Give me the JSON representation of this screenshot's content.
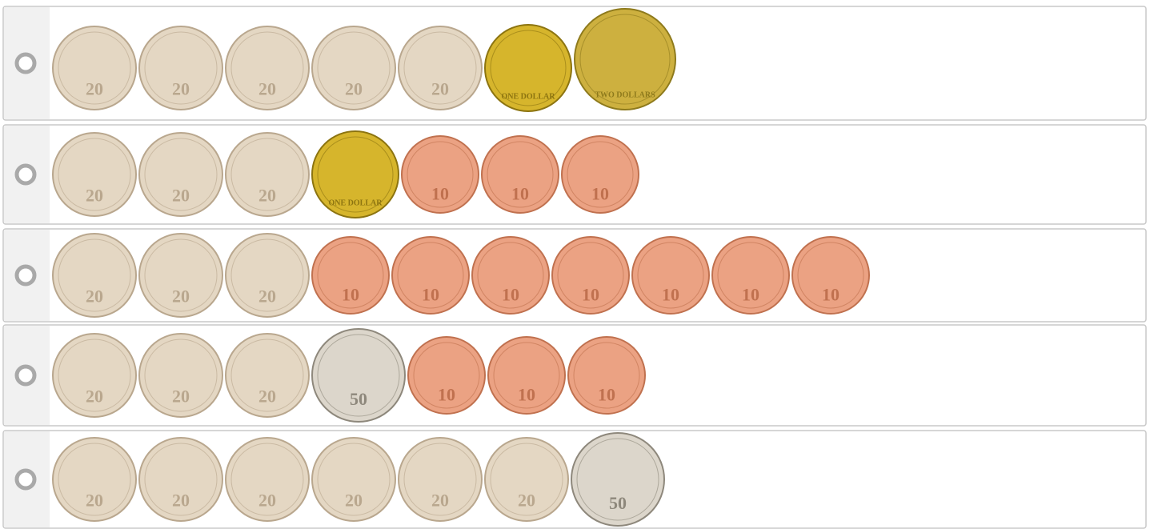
{
  "options": [
    {
      "coins": [
        {
          "label": "20",
          "color": "#e4d7c3"
        },
        {
          "label": "20",
          "color": "#e4d7c3"
        },
        {
          "label": "20",
          "color": "#e4d7c3"
        },
        {
          "label": "20",
          "color": "#e4d7c3"
        },
        {
          "label": "20",
          "color": "#e4d7c3"
        },
        {
          "label": "ONE DOLLAR",
          "color": "#d6b52c"
        },
        {
          "label": "TWO DOLLARS",
          "color": "#cdb03f"
        }
      ]
    },
    {
      "coins": [
        {
          "label": "20",
          "color": "#e4d7c3"
        },
        {
          "label": "20",
          "color": "#e4d7c3"
        },
        {
          "label": "20",
          "color": "#e4d7c3"
        },
        {
          "label": "ONE DOLLAR",
          "color": "#d6b52c"
        },
        {
          "label": "10",
          "color": "#eba283"
        },
        {
          "label": "10",
          "color": "#eba283"
        },
        {
          "label": "10",
          "color": "#eba283"
        }
      ]
    },
    {
      "coins": [
        {
          "label": "20",
          "color": "#e4d7c3"
        },
        {
          "label": "20",
          "color": "#e4d7c3"
        },
        {
          "label": "20",
          "color": "#e4d7c3"
        },
        {
          "label": "10",
          "color": "#eba283"
        },
        {
          "label": "10",
          "color": "#eba283"
        },
        {
          "label": "10",
          "color": "#eba283"
        },
        {
          "label": "10",
          "color": "#eba283"
        },
        {
          "label": "10",
          "color": "#eba283"
        },
        {
          "label": "10",
          "color": "#eba283"
        },
        {
          "label": "10",
          "color": "#eba283"
        }
      ]
    },
    {
      "coins": [
        {
          "label": "20",
          "color": "#e4d7c3"
        },
        {
          "label": "20",
          "color": "#e4d7c3"
        },
        {
          "label": "20",
          "color": "#e4d7c3"
        },
        {
          "label": "50",
          "color": "#dcd6cb"
        },
        {
          "label": "10",
          "color": "#eba283"
        },
        {
          "label": "10",
          "color": "#eba283"
        },
        {
          "label": "10",
          "color": "#eba283"
        }
      ]
    },
    {
      "coins": [
        {
          "label": "20",
          "color": "#e4d7c3"
        },
        {
          "label": "20",
          "color": "#e4d7c3"
        },
        {
          "label": "20",
          "color": "#e4d7c3"
        },
        {
          "label": "20",
          "color": "#e4d7c3"
        },
        {
          "label": "20",
          "color": "#e4d7c3"
        },
        {
          "label": "20",
          "color": "#e4d7c3"
        },
        {
          "label": "50",
          "color": "#dcd6cb"
        }
      ]
    }
  ]
}
